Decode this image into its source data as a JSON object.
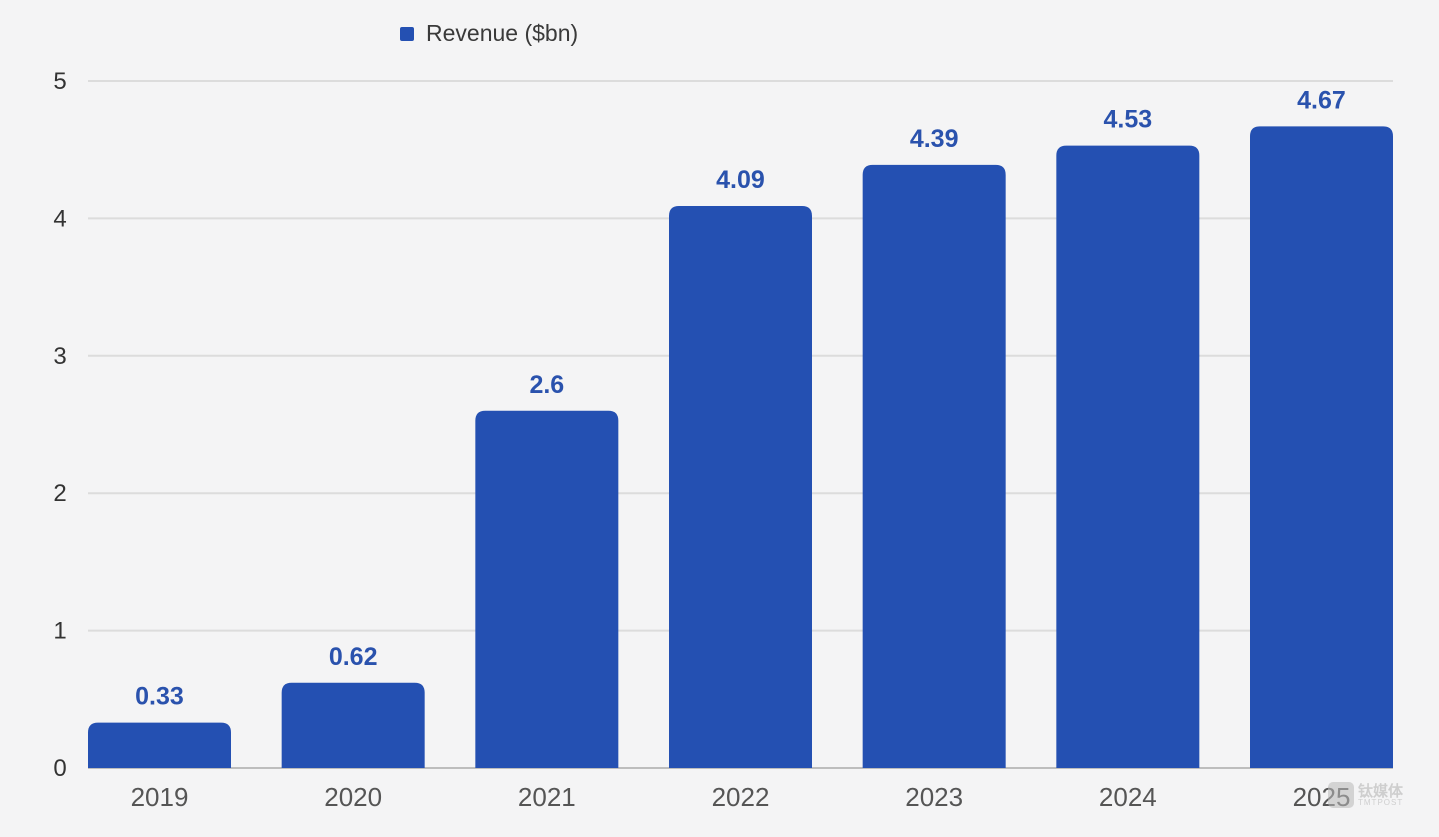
{
  "chart_data": {
    "type": "bar",
    "title": "",
    "xlabel": "",
    "ylabel": "",
    "categories": [
      "2019",
      "2020",
      "2021",
      "2022",
      "2023",
      "2024",
      "2025"
    ],
    "series": [
      {
        "name": "Revenue ($bn)",
        "color": "#2450b2",
        "values": [
          0.33,
          0.62,
          2.6,
          4.09,
          4.39,
          4.53,
          4.67
        ],
        "labels": [
          "0.33",
          "0.62",
          "2.6",
          "4.09",
          "4.39",
          "4.53",
          "4.67"
        ]
      }
    ],
    "ylim": [
      0,
      5
    ],
    "yticks": [
      "0",
      "1",
      "2",
      "3",
      "4",
      "5"
    ],
    "grid": true,
    "legend": "top-center"
  },
  "legend": {
    "label": "Revenue ($bn)"
  },
  "watermark": {
    "cn": "钛媒体",
    "en": "TMTPOST"
  },
  "colors": {
    "bar": "#2450b2",
    "data_label": "#2a52ad",
    "axis_text": "#555555",
    "grid": "#dcdcdc"
  }
}
